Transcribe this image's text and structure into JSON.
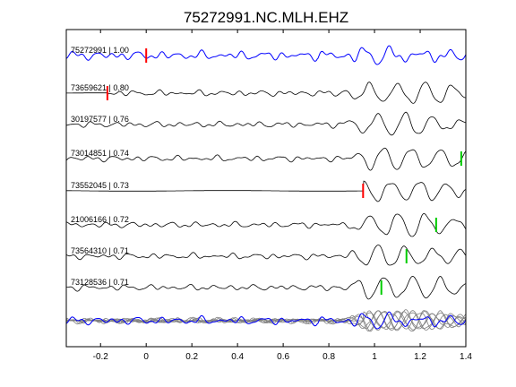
{
  "chart_data": {
    "type": "line",
    "title": "75272991.NC.MLH.EHZ",
    "xlabel": "",
    "ylabel": "",
    "xlim": [
      -0.35,
      1.4
    ],
    "xticks": [
      -0.2,
      0,
      0.2,
      0.4,
      0.6,
      0.8,
      1,
      1.2,
      1.4
    ],
    "xtick_labels": [
      "-0.2",
      "0",
      "0.2",
      "0.4",
      "0.6",
      "0.8",
      "1",
      "1.2",
      "1.4"
    ],
    "grid": false,
    "colors": {
      "reference_trace": "#0000ff",
      "trace": "#000000",
      "stack_trace": "#808080",
      "p_pick": "#ff0000",
      "s_pick": "#00cc00"
    },
    "traces": [
      {
        "label": "75272991 | 1.00",
        "reference": true,
        "pick_p": 0.0,
        "pick_s": null,
        "onset": -0.35
      },
      {
        "label": "73659621 | 0.80",
        "reference": false,
        "pick_p": -0.17,
        "pick_s": null,
        "onset": -0.17
      },
      {
        "label": "30197577 | 0.76",
        "reference": false,
        "pick_p": null,
        "pick_s": null,
        "onset": -0.35
      },
      {
        "label": "73014851 | 0.74",
        "reference": false,
        "pick_p": null,
        "pick_s": 1.38,
        "onset": -0.35
      },
      {
        "label": "73552045 | 0.73",
        "reference": false,
        "pick_p": 0.95,
        "pick_s": null,
        "onset": 0.95
      },
      {
        "label": "21006166 | 0.72",
        "reference": false,
        "pick_p": null,
        "pick_s": 1.27,
        "onset": -0.35
      },
      {
        "label": "73564310 | 0.71",
        "reference": false,
        "pick_p": null,
        "pick_s": 1.14,
        "onset": -0.35
      },
      {
        "label": "73128536 | 0.71",
        "reference": false,
        "pick_p": null,
        "pick_s": 1.03,
        "onset": -0.35
      }
    ],
    "stack": {
      "overlay_count": 8,
      "includes_reference": true
    }
  }
}
